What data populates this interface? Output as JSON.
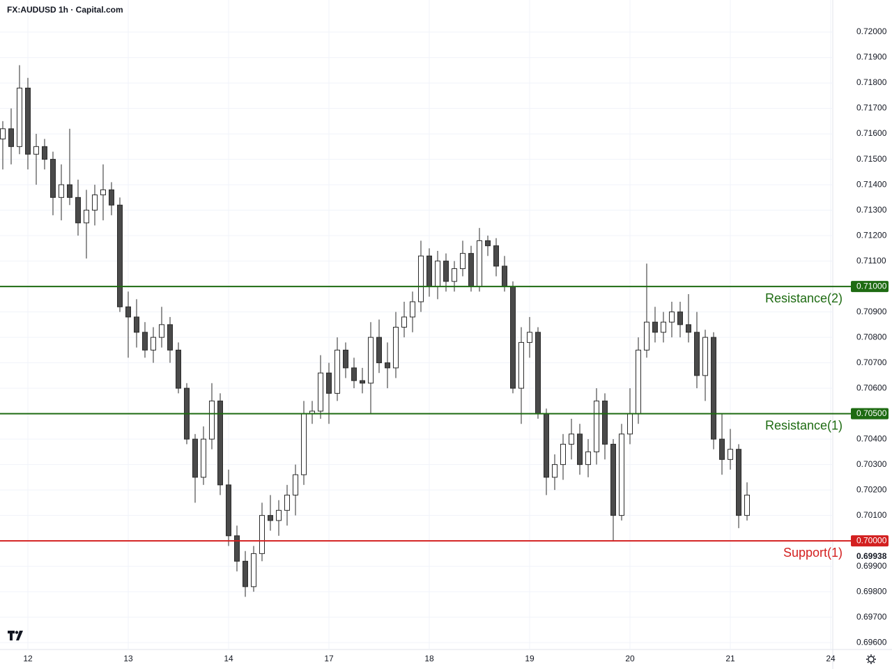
{
  "chart_data": {
    "type": "candlestick",
    "title": "FX:AUDUSD 1h · Capital.com",
    "xlim": [
      -3.333,
      96.25
    ],
    "ylim": [
      0.69573,
      0.72044
    ],
    "xticks": [
      {
        "value": 0,
        "label": "12"
      },
      {
        "value": 12,
        "label": "13"
      },
      {
        "value": 24,
        "label": "14"
      },
      {
        "value": 36,
        "label": "17"
      },
      {
        "value": 48,
        "label": "18"
      },
      {
        "value": 60,
        "label": "19"
      },
      {
        "value": 72,
        "label": "20"
      },
      {
        "value": 84,
        "label": "21"
      },
      {
        "value": 96,
        "label": "24"
      }
    ],
    "yticks": [
      {
        "value": 0.72,
        "label": "0.72000"
      },
      {
        "value": 0.719,
        "label": "0.71900"
      },
      {
        "value": 0.718,
        "label": "0.71800"
      },
      {
        "value": 0.717,
        "label": "0.71700"
      },
      {
        "value": 0.716,
        "label": "0.71600"
      },
      {
        "value": 0.715,
        "label": "0.71500"
      },
      {
        "value": 0.714,
        "label": "0.71400"
      },
      {
        "value": 0.713,
        "label": "0.71300"
      },
      {
        "value": 0.712,
        "label": "0.71200"
      },
      {
        "value": 0.711,
        "label": "0.71100"
      },
      {
        "value": 0.709,
        "label": "0.70900"
      },
      {
        "value": 0.708,
        "label": "0.70800"
      },
      {
        "value": 0.707,
        "label": "0.70700"
      },
      {
        "value": 0.706,
        "label": "0.70600"
      },
      {
        "value": 0.704,
        "label": "0.70400"
      },
      {
        "value": 0.703,
        "label": "0.70300"
      },
      {
        "value": 0.702,
        "label": "0.70200"
      },
      {
        "value": 0.701,
        "label": "0.70100"
      },
      {
        "value": 0.699,
        "label": "0.69900"
      },
      {
        "value": 0.698,
        "label": "0.69800"
      },
      {
        "value": 0.697,
        "label": "0.69700"
      },
      {
        "value": 0.696,
        "label": "0.69600"
      }
    ],
    "grid": true,
    "up_color": "#ffffff",
    "down_color": "#4a4a4a",
    "x": [
      -3,
      -2,
      -1,
      0,
      1,
      2,
      3,
      4,
      5,
      6,
      7,
      8,
      9,
      10,
      11,
      12,
      13,
      14,
      15,
      16,
      17,
      18,
      19,
      20,
      21,
      22,
      23,
      24,
      25,
      26,
      27,
      28,
      29,
      30,
      31,
      32,
      33,
      34,
      35,
      36,
      37,
      38,
      39,
      40,
      41,
      42,
      43,
      44,
      45,
      46,
      47,
      48,
      49,
      50,
      51,
      52,
      53,
      54,
      55,
      56,
      57,
      58,
      59,
      60,
      61,
      62,
      63,
      64,
      65,
      66,
      67,
      68,
      69,
      70,
      71,
      72,
      73,
      74,
      75,
      76,
      77,
      78,
      79,
      80,
      81,
      82,
      83,
      84,
      85,
      86
    ],
    "ohlc": [
      [
        0.7158,
        0.7165,
        0.7146,
        0.7162
      ],
      [
        0.7162,
        0.717,
        0.7148,
        0.7155
      ],
      [
        0.7155,
        0.7187,
        0.7152,
        0.7178
      ],
      [
        0.7178,
        0.7182,
        0.7146,
        0.7152
      ],
      [
        0.7152,
        0.716,
        0.714,
        0.7155
      ],
      [
        0.7155,
        0.7158,
        0.7146,
        0.715
      ],
      [
        0.715,
        0.7153,
        0.7128,
        0.7135
      ],
      [
        0.7135,
        0.7148,
        0.7126,
        0.714
      ],
      [
        0.714,
        0.7162,
        0.7132,
        0.7135
      ],
      [
        0.7135,
        0.7142,
        0.712,
        0.7125
      ],
      [
        0.7125,
        0.7138,
        0.7111,
        0.713
      ],
      [
        0.713,
        0.714,
        0.7124,
        0.7136
      ],
      [
        0.7136,
        0.7148,
        0.7126,
        0.7138
      ],
      [
        0.7138,
        0.7141,
        0.7128,
        0.7132
      ],
      [
        0.7132,
        0.7135,
        0.709,
        0.7092
      ],
      [
        0.7092,
        0.7098,
        0.7072,
        0.7088
      ],
      [
        0.7088,
        0.7095,
        0.7076,
        0.7082
      ],
      [
        0.7082,
        0.7086,
        0.7072,
        0.7075
      ],
      [
        0.7075,
        0.7084,
        0.707,
        0.708
      ],
      [
        0.708,
        0.7092,
        0.7076,
        0.7085
      ],
      [
        0.7085,
        0.7088,
        0.707,
        0.7075
      ],
      [
        0.7075,
        0.7078,
        0.7058,
        0.706
      ],
      [
        0.706,
        0.7062,
        0.7038,
        0.704
      ],
      [
        0.704,
        0.7042,
        0.7015,
        0.7025
      ],
      [
        0.7025,
        0.7045,
        0.7022,
        0.704
      ],
      [
        0.704,
        0.7062,
        0.7036,
        0.7055
      ],
      [
        0.7055,
        0.7058,
        0.7018,
        0.7022
      ],
      [
        0.7022,
        0.7028,
        0.6998,
        0.7002
      ],
      [
        0.7002,
        0.7006,
        0.6988,
        0.6992
      ],
      [
        0.6992,
        0.6996,
        0.6978,
        0.6982
      ],
      [
        0.6982,
        0.6998,
        0.698,
        0.6995
      ],
      [
        0.6995,
        0.7015,
        0.6992,
        0.701
      ],
      [
        0.701,
        0.7018,
        0.7004,
        0.7008
      ],
      [
        0.7008,
        0.7016,
        0.7002,
        0.7012
      ],
      [
        0.7012,
        0.7022,
        0.7006,
        0.7018
      ],
      [
        0.7018,
        0.703,
        0.701,
        0.7026
      ],
      [
        0.7026,
        0.7055,
        0.7022,
        0.705
      ],
      [
        0.705,
        0.7055,
        0.7046,
        0.7051
      ],
      [
        0.7051,
        0.7073,
        0.7048,
        0.7066
      ],
      [
        0.7066,
        0.707,
        0.7046,
        0.7058
      ],
      [
        0.7058,
        0.708,
        0.7055,
        0.7075
      ],
      [
        0.7075,
        0.7078,
        0.7064,
        0.7068
      ],
      [
        0.7068,
        0.7072,
        0.706,
        0.7063
      ],
      [
        0.7063,
        0.7068,
        0.7058,
        0.7062
      ],
      [
        0.7062,
        0.7086,
        0.705,
        0.708
      ],
      [
        0.708,
        0.7087,
        0.7066,
        0.707
      ],
      [
        0.707,
        0.7078,
        0.706,
        0.7068
      ],
      [
        0.7068,
        0.709,
        0.7064,
        0.7084
      ],
      [
        0.7084,
        0.7094,
        0.708,
        0.7088
      ],
      [
        0.7088,
        0.7098,
        0.7082,
        0.7094
      ],
      [
        0.7094,
        0.7118,
        0.709,
        0.7112
      ],
      [
        0.7112,
        0.7115,
        0.7096,
        0.71
      ],
      [
        0.71,
        0.7114,
        0.7095,
        0.711
      ],
      [
        0.711,
        0.7113,
        0.7098,
        0.7102
      ],
      [
        0.7102,
        0.711,
        0.7098,
        0.7107
      ],
      [
        0.7107,
        0.7118,
        0.7104,
        0.7113
      ],
      [
        0.7113,
        0.7116,
        0.7098,
        0.71
      ],
      [
        0.71,
        0.7123,
        0.7098,
        0.7118
      ],
      [
        0.7118,
        0.712,
        0.7112,
        0.7116
      ],
      [
        0.7116,
        0.7119,
        0.7104,
        0.7108
      ],
      [
        0.7108,
        0.7112,
        0.7098,
        0.71
      ],
      [
        0.71,
        0.7102,
        0.7058,
        0.706
      ],
      [
        0.706,
        0.7084,
        0.7046,
        0.7078
      ],
      [
        0.7078,
        0.7088,
        0.7072,
        0.7082
      ],
      [
        0.7082,
        0.7084,
        0.7048,
        0.705
      ],
      [
        0.705,
        0.7052,
        0.7018,
        0.7025
      ],
      [
        0.7025,
        0.7034,
        0.702,
        0.703
      ],
      [
        0.703,
        0.7042,
        0.7024,
        0.7038
      ],
      [
        0.7038,
        0.7048,
        0.7032,
        0.7042
      ],
      [
        0.7042,
        0.7046,
        0.7026,
        0.703
      ],
      [
        0.703,
        0.704,
        0.7025,
        0.7035
      ],
      [
        0.7035,
        0.706,
        0.703,
        0.7055
      ],
      [
        0.7055,
        0.7058,
        0.7032,
        0.7038
      ],
      [
        0.7038,
        0.704,
        0.7,
        0.701
      ],
      [
        0.701,
        0.7046,
        0.7008,
        0.7042
      ],
      [
        0.7042,
        0.706,
        0.7038,
        0.705
      ],
      [
        0.705,
        0.708,
        0.7046,
        0.7075
      ],
      [
        0.7075,
        0.7109,
        0.7072,
        0.7086
      ],
      [
        0.7086,
        0.7092,
        0.7078,
        0.7082
      ],
      [
        0.7082,
        0.709,
        0.7078,
        0.7086
      ],
      [
        0.7086,
        0.7094,
        0.708,
        0.709
      ],
      [
        0.709,
        0.7094,
        0.708,
        0.7085
      ],
      [
        0.7085,
        0.7097,
        0.7078,
        0.7082
      ],
      [
        0.7082,
        0.709,
        0.706,
        0.7065
      ],
      [
        0.7065,
        0.7083,
        0.7055,
        0.708
      ],
      [
        0.708,
        0.7082,
        0.7036,
        0.704
      ],
      [
        0.704,
        0.705,
        0.7026,
        0.7032
      ],
      [
        0.7032,
        0.7044,
        0.7028,
        0.7036
      ],
      [
        0.7036,
        0.7038,
        0.7005,
        0.701
      ],
      [
        0.701,
        0.7023,
        0.7008,
        0.7018
      ]
    ],
    "levels": [
      {
        "name": "Resistance(2)",
        "value": 0.71,
        "label": "0.71000",
        "color": "#1e6b12"
      },
      {
        "name": "Resistance(1)",
        "value": 0.705,
        "label": "0.70500",
        "color": "#1e6b12"
      },
      {
        "name": "Support(1)",
        "value": 0.7,
        "label": "0.70000",
        "color": "#d32020"
      }
    ],
    "last_price": 0.69938
  }
}
